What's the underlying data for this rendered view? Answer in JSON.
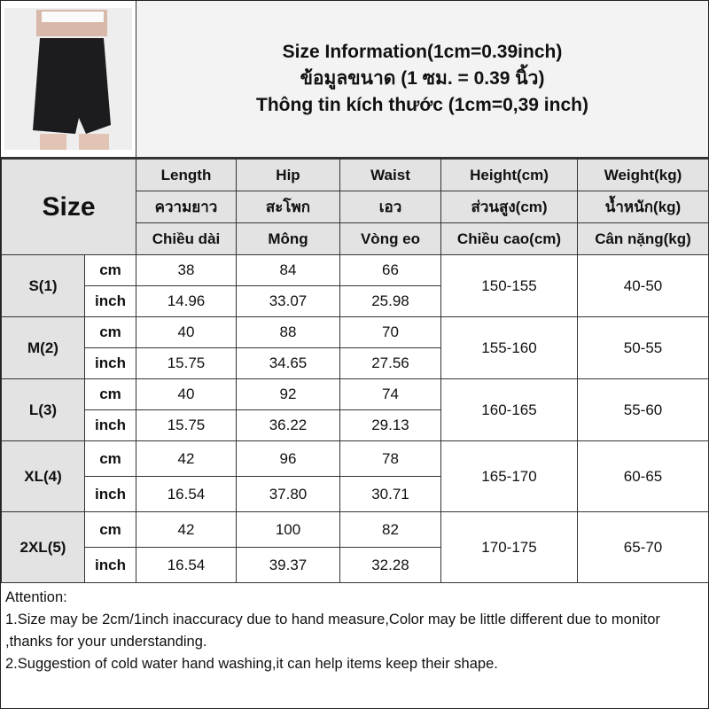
{
  "title": {
    "line_en": "Size Information(1cm=0.39inch)",
    "line_th": "ข้อมูลขนาด (1 ซม. = 0.39 นิ้ว)",
    "line_vi": "Thông tin kích thước (1cm=0,39 inch)"
  },
  "size_label": "Size",
  "columns": [
    {
      "en": "Length",
      "th": "ความยาว",
      "vi": "Chiều dài"
    },
    {
      "en": "Hip",
      "th": "สะโพก",
      "vi": "Mông"
    },
    {
      "en": "Waist",
      "th": "เอว",
      "vi": "Vòng eo"
    },
    {
      "en": "Height(cm)",
      "th": "ส่วนสูง(cm)",
      "vi": "Chiều cao(cm)"
    },
    {
      "en": "Weight(kg)",
      "th": "น้ำหนัก(kg)",
      "vi": "Cân nặng(kg)"
    }
  ],
  "units": {
    "cm": "cm",
    "inch": "inch"
  },
  "rows": [
    {
      "size": "S(1)",
      "cm": [
        "38",
        "84",
        "66"
      ],
      "inch": [
        "14.96",
        "33.07",
        "25.98"
      ],
      "height": "150-155",
      "weight": "40-50"
    },
    {
      "size": "M(2)",
      "cm": [
        "40",
        "88",
        "70"
      ],
      "inch": [
        "15.75",
        "34.65",
        "27.56"
      ],
      "height": "155-160",
      "weight": "50-55"
    },
    {
      "size": "L(3)",
      "cm": [
        "40",
        "92",
        "74"
      ],
      "inch": [
        "15.75",
        "36.22",
        "29.13"
      ],
      "height": "160-165",
      "weight": "55-60"
    },
    {
      "size": "XL(4)",
      "cm": [
        "42",
        "96",
        "78"
      ],
      "inch": [
        "16.54",
        "37.80",
        "30.71"
      ],
      "height": "165-170",
      "weight": "60-65"
    },
    {
      "size": "2XL(5)",
      "cm": [
        "42",
        "100",
        "82"
      ],
      "inch": [
        "16.54",
        "39.37",
        "32.28"
      ],
      "height": "170-175",
      "weight": "65-70"
    }
  ],
  "attention": {
    "heading": "Attention:",
    "note1": "1.Size may be 2cm/1inch inaccuracy due to hand measure,Color may be little different due to monitor ,thanks for your understanding.",
    "note2": "2.Suggestion of cold water hand washing,it can help items keep their shape."
  }
}
